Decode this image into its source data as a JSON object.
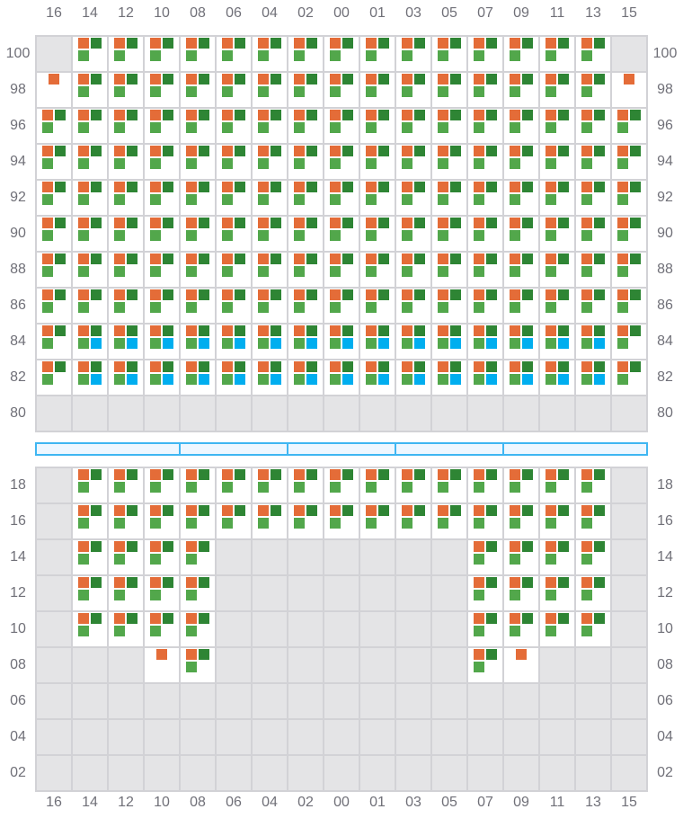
{
  "columns": [
    "16",
    "14",
    "12",
    "10",
    "08",
    "06",
    "04",
    "02",
    "00",
    "01",
    "03",
    "05",
    "07",
    "09",
    "11",
    "13",
    "15"
  ],
  "legend_codes": {
    "X": "unavailable",
    "F": "orange+dark-green+light-green",
    "B": "orange+dark-green+light-green+blue",
    "O": "orange-only"
  },
  "colors": {
    "orange": "#e46c38",
    "dark_green": "#2e8534",
    "light_green": "#52a74b",
    "blue": "#00aeef",
    "unavailable": "#e4e4e6",
    "divider": "#3fb6f2"
  },
  "top_section": {
    "rows": [
      {
        "label": "100",
        "cells": "XFFFFFFFFFFFFFFFX"
      },
      {
        "label": "98",
        "cells": "OFFFFFFFFFFFFFFFO"
      },
      {
        "label": "96",
        "cells": "FFFFFFFFFFFFFFFFF"
      },
      {
        "label": "94",
        "cells": "FFFFFFFFFFFFFFFFF"
      },
      {
        "label": "92",
        "cells": "FFFFFFFFFFFFFFFFF"
      },
      {
        "label": "90",
        "cells": "FFFFFFFFFFFFFFFFF"
      },
      {
        "label": "88",
        "cells": "FFFFFFFFFFFFFFFFF"
      },
      {
        "label": "86",
        "cells": "FFFFFFFFFFFFFFFFF"
      },
      {
        "label": "84",
        "cells": "FBBBBBBBBBBBBBBBF"
      },
      {
        "label": "82",
        "cells": "FBBBBBBBBBBBBBBBF"
      },
      {
        "label": "80",
        "cells": "XXXXXXXXXXXXXXXXX"
      }
    ]
  },
  "divider_segments": 5,
  "bottom_section": {
    "rows": [
      {
        "label": "18",
        "cells": "XFFFFFFFFFFFFFFFX"
      },
      {
        "label": "16",
        "cells": "XFFFFFFFFFFFFFFFX"
      },
      {
        "label": "14",
        "cells": "XFFFFXXXXXXXFFFFX"
      },
      {
        "label": "12",
        "cells": "XFFFFXXXXXXXFFFFX"
      },
      {
        "label": "10",
        "cells": "XFFFFXXXXXXXFFFFX"
      },
      {
        "label": "08",
        "cells": "XXXOFXXXXXXXFOXXX"
      },
      {
        "label": "06",
        "cells": "XXXXXXXXXXXXXXXXX"
      },
      {
        "label": "04",
        "cells": "XXXXXXXXXXXXXXXXX"
      },
      {
        "label": "02",
        "cells": "XXXXXXXXXXXXXXXXX"
      }
    ]
  }
}
